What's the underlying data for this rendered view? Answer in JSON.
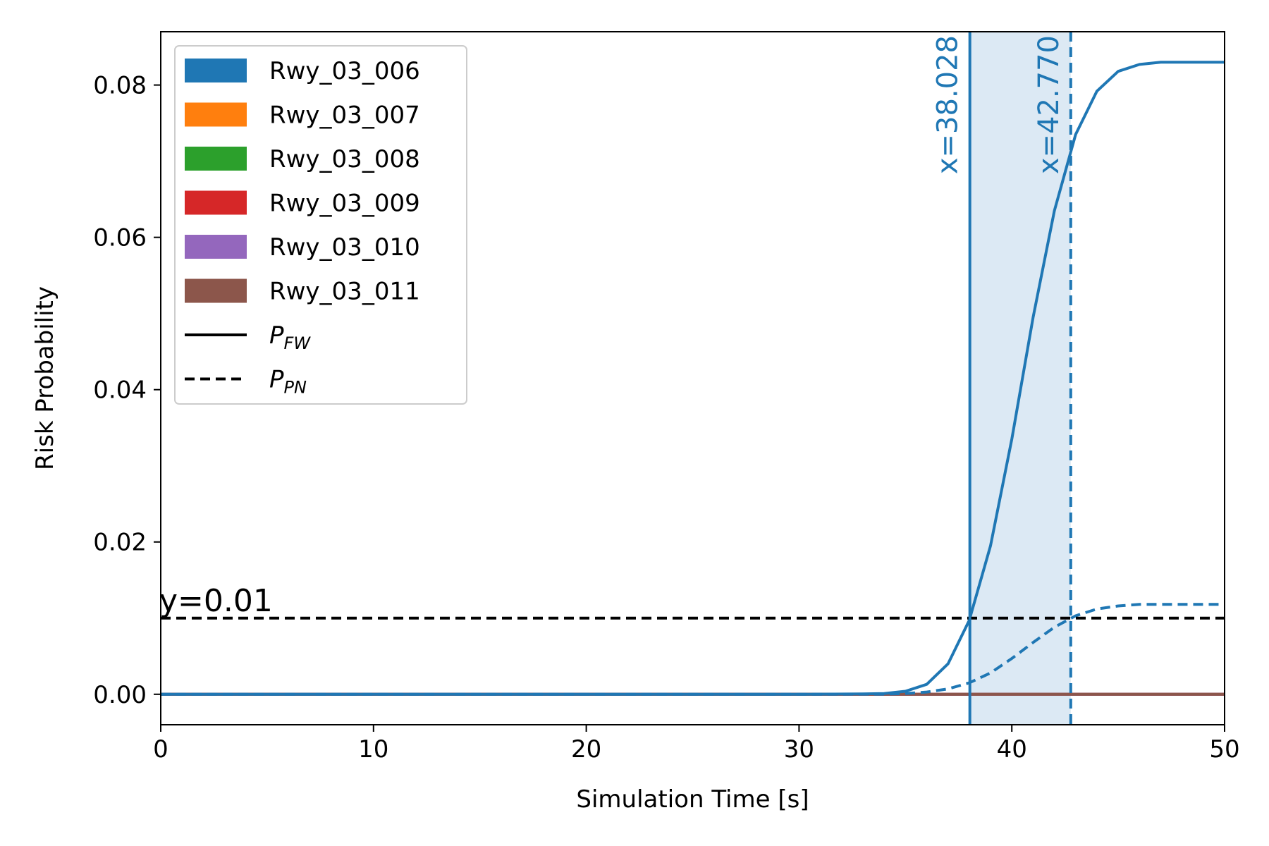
{
  "chart_data": {
    "type": "line",
    "title": "",
    "xlabel": "Simulation Time [s]",
    "ylabel": "Risk Probability",
    "xlim": [
      0,
      50
    ],
    "ylim": [
      -0.004,
      0.087
    ],
    "xticks": [
      0,
      10,
      20,
      30,
      40,
      50
    ],
    "xtick_labels": [
      "0",
      "10",
      "20",
      "30",
      "40",
      "50"
    ],
    "yticks": [
      0.0,
      0.02,
      0.04,
      0.06,
      0.08
    ],
    "ytick_labels": [
      "0.00",
      "0.02",
      "0.04",
      "0.06",
      "0.08"
    ],
    "grid": false,
    "legend_position": "upper-left",
    "colors": {
      "Rwy_03_006": "#1f77b4",
      "Rwy_03_007": "#ff7f0e",
      "Rwy_03_008": "#2ca02c",
      "Rwy_03_009": "#d62728",
      "Rwy_03_010": "#9467bd",
      "Rwy_03_011": "#8c564b",
      "black": "#000000",
      "shade": "#dce9f4"
    },
    "legend": [
      {
        "label": "Rwy_03_006",
        "kind": "patch",
        "color": "#1f77b4"
      },
      {
        "label": "Rwy_03_007",
        "kind": "patch",
        "color": "#ff7f0e"
      },
      {
        "label": "Rwy_03_008",
        "kind": "patch",
        "color": "#2ca02c"
      },
      {
        "label": "Rwy_03_009",
        "kind": "patch",
        "color": "#d62728"
      },
      {
        "label": "Rwy_03_010",
        "kind": "patch",
        "color": "#9467bd"
      },
      {
        "label": "Rwy_03_011",
        "kind": "patch",
        "color": "#8c564b"
      },
      {
        "label": "P",
        "sub": "FW",
        "kind": "line",
        "dash": "solid",
        "color": "#000000"
      },
      {
        "label": "P",
        "sub": "PN",
        "kind": "line",
        "dash": "dashed",
        "color": "#000000"
      }
    ],
    "series": [
      {
        "name": "Rwy_03_006",
        "metric": "P_FW",
        "style": "solid",
        "color": "#1f77b4",
        "x": [
          0,
          5,
          10,
          15,
          20,
          25,
          30,
          33,
          34,
          35,
          36,
          37,
          38,
          39,
          40,
          41,
          42,
          43,
          44,
          45,
          46,
          47,
          48,
          49,
          50
        ],
        "y": [
          0,
          0,
          0,
          0,
          0,
          0,
          0,
          5e-05,
          0.0001,
          0.0004,
          0.0013,
          0.004,
          0.0097,
          0.0195,
          0.0335,
          0.0495,
          0.0635,
          0.0735,
          0.0792,
          0.0818,
          0.0827,
          0.083,
          0.083,
          0.083,
          0.083
        ]
      },
      {
        "name": "Rwy_03_006",
        "metric": "P_PN",
        "style": "dashed",
        "color": "#1f77b4",
        "x": [
          0,
          5,
          10,
          15,
          20,
          25,
          30,
          34,
          35,
          36,
          37,
          38,
          39,
          40,
          41,
          42,
          43,
          44,
          45,
          46,
          47,
          48,
          49,
          50
        ],
        "y": [
          0,
          0,
          0,
          0,
          0,
          0,
          0,
          2e-05,
          0.0001,
          0.0003,
          0.0007,
          0.0015,
          0.0028,
          0.0047,
          0.0068,
          0.0088,
          0.0103,
          0.0112,
          0.0116,
          0.0118,
          0.0118,
          0.0118,
          0.0118,
          0.0118
        ]
      },
      {
        "name": "Rwy_03_007",
        "metric": "P_FW",
        "style": "solid",
        "color": "#ff7f0e",
        "x": [
          0,
          50
        ],
        "y": [
          0,
          0
        ]
      },
      {
        "name": "Rwy_03_008",
        "metric": "P_FW",
        "style": "solid",
        "color": "#2ca02c",
        "x": [
          0,
          50
        ],
        "y": [
          0,
          0
        ]
      },
      {
        "name": "Rwy_03_009",
        "metric": "P_FW",
        "style": "solid",
        "color": "#d62728",
        "x": [
          0,
          50
        ],
        "y": [
          0,
          0
        ]
      },
      {
        "name": "Rwy_03_010",
        "metric": "P_FW",
        "style": "solid",
        "color": "#9467bd",
        "x": [
          0,
          50
        ],
        "y": [
          0,
          0
        ]
      },
      {
        "name": "Rwy_03_011",
        "metric": "P_FW",
        "style": "solid",
        "color": "#8c564b",
        "x": [
          0,
          50
        ],
        "y": [
          0,
          0
        ]
      }
    ],
    "threshold": {
      "y": 0.01,
      "label": "y=0.01",
      "style": "dashed",
      "color": "#000000"
    },
    "markers": [
      {
        "x": 38.028,
        "label": "x=38.028",
        "style": "solid",
        "color": "#1f77b4"
      },
      {
        "x": 42.77,
        "label": "x=42.770",
        "style": "dashed",
        "color": "#1f77b4"
      }
    ],
    "shaded_region": {
      "x0": 38.028,
      "x1": 42.77,
      "color": "#dce9f4"
    }
  }
}
